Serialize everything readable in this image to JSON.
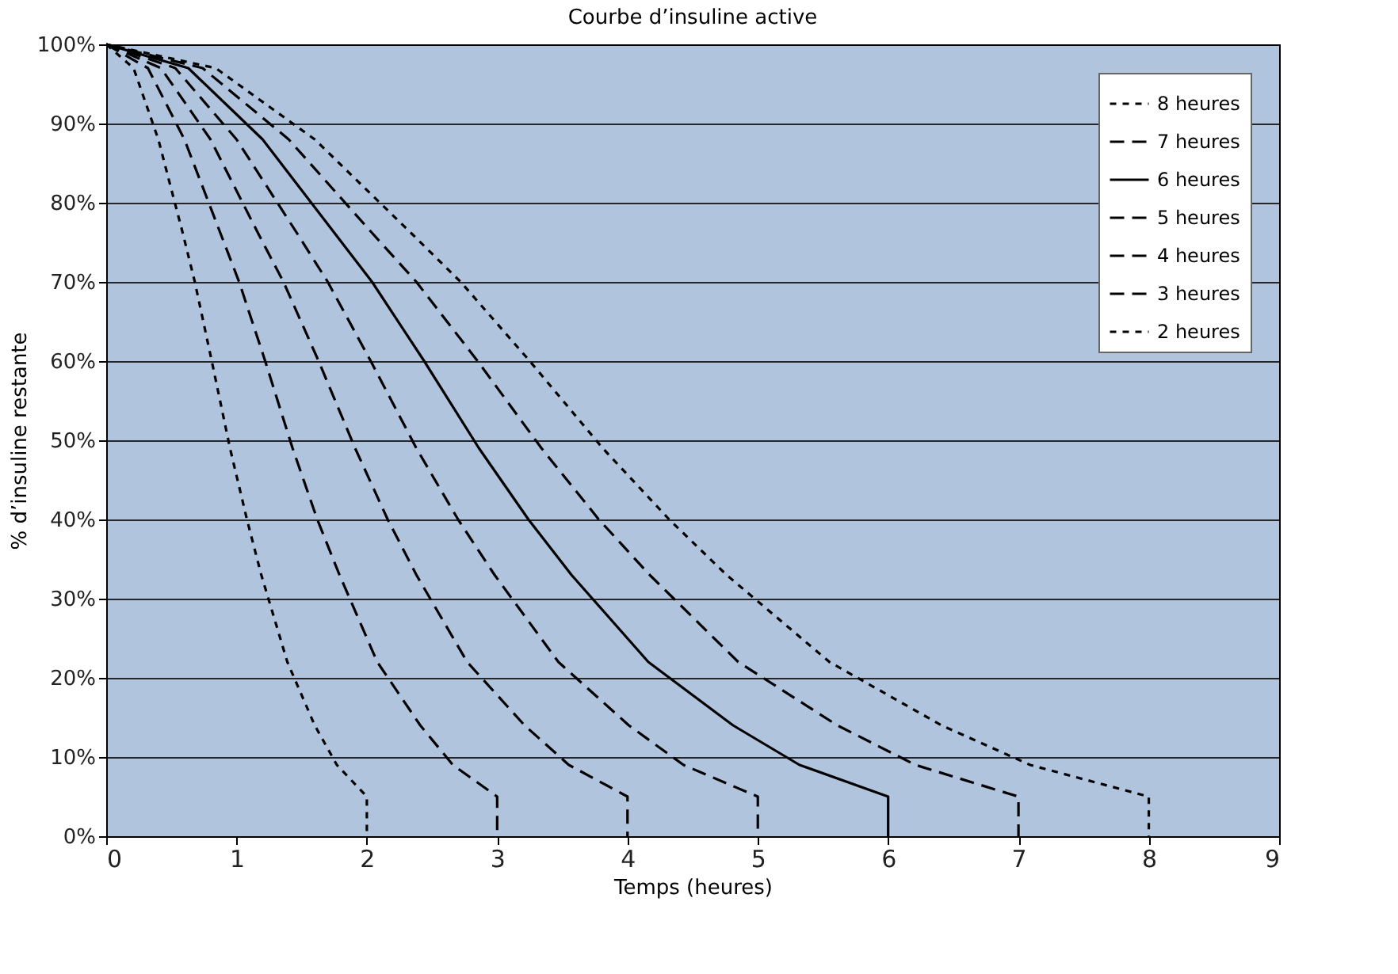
{
  "chart_data": {
    "type": "line",
    "title": "Courbe d’insuline active",
    "xlabel": "Temps (heures)",
    "ylabel": "% d’insuline restante",
    "xlim": [
      0,
      9
    ],
    "xticks": [
      0,
      1,
      2,
      3,
      4,
      5,
      6,
      7,
      8,
      9
    ],
    "ylim": [
      0,
      100
    ],
    "yticks": [
      {
        "value": 0,
        "label": "0%"
      },
      {
        "value": 10,
        "label": "10%"
      },
      {
        "value": 20,
        "label": "20%"
      },
      {
        "value": 30,
        "label": "30%"
      },
      {
        "value": 40,
        "label": "40%"
      },
      {
        "value": 50,
        "label": "50%"
      },
      {
        "value": 60,
        "label": "60%"
      },
      {
        "value": 70,
        "label": "70%"
      },
      {
        "value": 80,
        "label": "80%"
      },
      {
        "value": 90,
        "label": "90%"
      },
      {
        "value": 100,
        "label": "100%"
      }
    ],
    "grid": "y",
    "legend": "top right",
    "marker": "none",
    "series": [
      {
        "name": "8 heures",
        "color": "#000000",
        "line_style": "dotted",
        "x": [
          0,
          0.84,
          1.6,
          2.35,
          2.72,
          3.25,
          3.81,
          4.32,
          4.76,
          5.55,
          6.41,
          7.09,
          8,
          8
        ],
        "values": [
          100,
          97,
          88,
          76,
          70,
          60,
          49,
          40,
          33,
          22,
          14,
          9,
          5,
          0
        ]
      },
      {
        "name": "7 heures",
        "color": "#000000",
        "line_style": "dashed",
        "x": [
          0,
          0.74,
          1.4,
          2.05,
          2.38,
          2.85,
          3.34,
          3.78,
          4.17,
          4.85,
          5.61,
          6.21,
          7,
          7
        ],
        "values": [
          100,
          97,
          88,
          76,
          70,
          60,
          49,
          40,
          33,
          22,
          14,
          9,
          5,
          0
        ]
      },
      {
        "name": "6 heures",
        "color": "#000000",
        "line_style": "solid",
        "x": [
          0,
          0.63,
          1.2,
          1.76,
          2.04,
          2.44,
          2.86,
          3.24,
          3.57,
          4.16,
          4.81,
          5.32,
          6,
          6
        ],
        "values": [
          100,
          97,
          88,
          76,
          70,
          60,
          49,
          40,
          33,
          22,
          14,
          9,
          5,
          0
        ]
      },
      {
        "name": "5 heures",
        "color": "#000000",
        "line_style": "dashed",
        "x": [
          0,
          0.53,
          1,
          1.47,
          1.7,
          2.03,
          2.38,
          2.7,
          2.98,
          3.47,
          4.01,
          4.43,
          5,
          5
        ],
        "values": [
          100,
          97,
          88,
          76,
          70,
          60,
          49,
          40,
          33,
          22,
          14,
          9,
          5,
          0
        ]
      },
      {
        "name": "4 heures",
        "color": "#000000",
        "line_style": "dashed",
        "x": [
          0,
          0.42,
          0.8,
          1.17,
          1.36,
          1.63,
          1.91,
          2.16,
          2.38,
          2.77,
          3.21,
          3.55,
          4,
          4
        ],
        "values": [
          100,
          97,
          88,
          76,
          70,
          60,
          49,
          40,
          33,
          22,
          14,
          9,
          5,
          0
        ]
      },
      {
        "name": "3 heures",
        "color": "#000000",
        "line_style": "dashed",
        "x": [
          0,
          0.32,
          0.6,
          0.88,
          1.02,
          1.22,
          1.43,
          1.62,
          1.79,
          2.08,
          2.41,
          2.66,
          3,
          3
        ],
        "values": [
          100,
          97,
          88,
          76,
          70,
          60,
          49,
          40,
          33,
          22,
          14,
          9,
          5,
          0
        ]
      },
      {
        "name": "2 heures",
        "color": "#000000",
        "line_style": "dotted",
        "x": [
          0,
          0.21,
          0.4,
          0.59,
          0.68,
          0.81,
          0.95,
          1.08,
          1.19,
          1.39,
          1.6,
          1.77,
          2,
          2
        ],
        "values": [
          100,
          97,
          88,
          76,
          70,
          60,
          49,
          40,
          33,
          22,
          14,
          9,
          5,
          0
        ]
      }
    ]
  }
}
